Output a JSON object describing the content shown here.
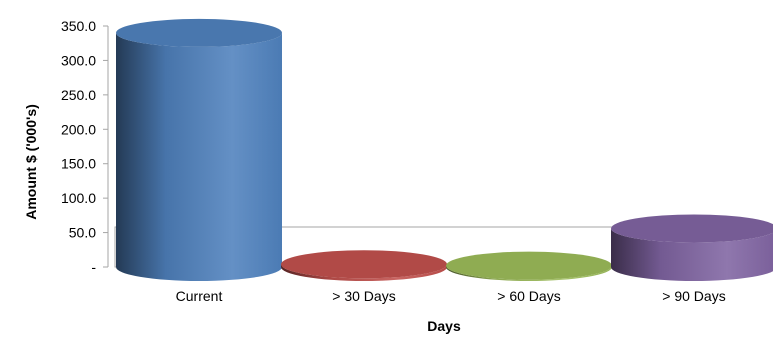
{
  "chart_data": {
    "type": "bar",
    "style": "3d-cylinder",
    "categories": [
      "Current",
      "> 30 Days",
      "> 60 Days",
      "> 90 Days"
    ],
    "series": [
      {
        "values": [
          340.0,
          4.0,
          2.0,
          56.0
        ]
      }
    ],
    "bar_colors": [
      "#4F81BD",
      "#C0504D",
      "#9BBB59",
      "#8064A2"
    ],
    "xlabel": "Days",
    "ylabel": "Amount $ ('000's)",
    "ylim": [
      0,
      350
    ],
    "y_ticks": [
      "-",
      "50.0",
      "100.0",
      "150.0",
      "200.0",
      "250.0",
      "300.0",
      "350.0"
    ],
    "legend": "none",
    "grid": false
  }
}
